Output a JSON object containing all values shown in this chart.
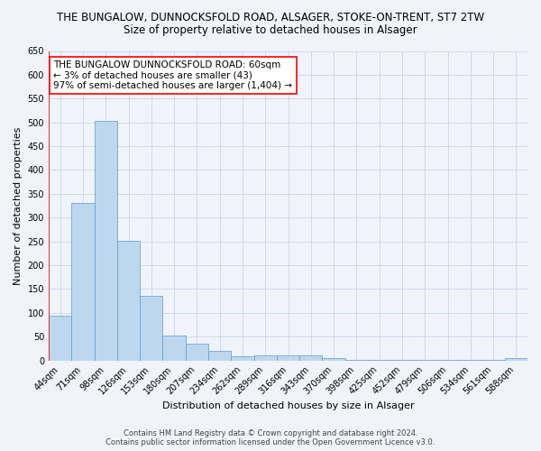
{
  "title_line1": "THE BUNGALOW, DUNNOCKSFOLD ROAD, ALSAGER, STOKE-ON-TRENT, ST7 2TW",
  "title_line2": "Size of property relative to detached houses in Alsager",
  "xlabel": "Distribution of detached houses by size in Alsager",
  "ylabel": "Number of detached properties",
  "categories": [
    "44sqm",
    "71sqm",
    "98sqm",
    "126sqm",
    "153sqm",
    "180sqm",
    "207sqm",
    "234sqm",
    "262sqm",
    "289sqm",
    "316sqm",
    "343sqm",
    "370sqm",
    "398sqm",
    "425sqm",
    "452sqm",
    "479sqm",
    "506sqm",
    "534sqm",
    "561sqm",
    "588sqm"
  ],
  "values": [
    95,
    330,
    503,
    252,
    136,
    53,
    36,
    20,
    8,
    10,
    10,
    10,
    5,
    2,
    1,
    1,
    1,
    1,
    2,
    1,
    5
  ],
  "bar_color": "#bdd7ee",
  "bar_edge_color": "#5b9bd5",
  "highlight_color": "#ff0000",
  "annotation_text": "THE BUNGALOW DUNNOCKSFOLD ROAD: 60sqm\n← 3% of detached houses are smaller (43)\n97% of semi-detached houses are larger (1,404) →",
  "annotation_box_color": "#ffffff",
  "annotation_box_edge_color": "#ff0000",
  "ylim": [
    0,
    650
  ],
  "yticks": [
    0,
    50,
    100,
    150,
    200,
    250,
    300,
    350,
    400,
    450,
    500,
    550,
    600,
    650
  ],
  "grid_color": "#c8d4e8",
  "background_color": "#f0f4fa",
  "footer_line1": "Contains HM Land Registry data © Crown copyright and database right 2024.",
  "footer_line2": "Contains public sector information licensed under the Open Government Licence v3.0.",
  "title_fontsize": 8.5,
  "subtitle_fontsize": 8.5,
  "label_fontsize": 8,
  "tick_fontsize": 7,
  "annotation_fontsize": 7.5,
  "footer_fontsize": 6
}
